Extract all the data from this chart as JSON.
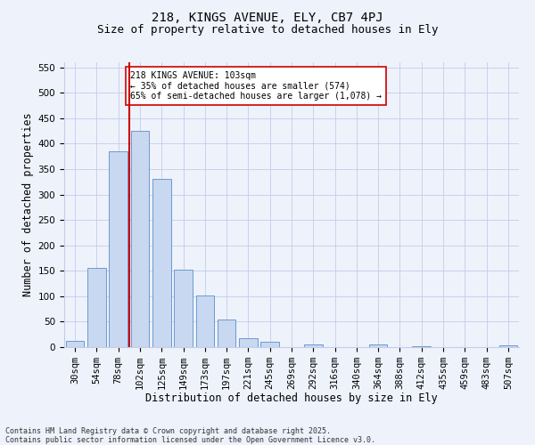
{
  "title1": "218, KINGS AVENUE, ELY, CB7 4PJ",
  "title2": "Size of property relative to detached houses in Ely",
  "xlabel": "Distribution of detached houses by size in Ely",
  "ylabel": "Number of detached properties",
  "categories": [
    "30sqm",
    "54sqm",
    "78sqm",
    "102sqm",
    "125sqm",
    "149sqm",
    "173sqm",
    "197sqm",
    "221sqm",
    "245sqm",
    "269sqm",
    "292sqm",
    "316sqm",
    "340sqm",
    "364sqm",
    "388sqm",
    "412sqm",
    "435sqm",
    "459sqm",
    "483sqm",
    "507sqm"
  ],
  "values": [
    12,
    155,
    385,
    425,
    330,
    152,
    102,
    55,
    18,
    10,
    0,
    5,
    0,
    0,
    5,
    0,
    2,
    0,
    0,
    0,
    3
  ],
  "bar_color": "#c8d8f0",
  "bar_edge_color": "#5b8fc9",
  "vline_color": "#cc0000",
  "vline_x": 2.5,
  "annotation_text": "218 KINGS AVENUE: 103sqm\n← 35% of detached houses are smaller (574)\n65% of semi-detached houses are larger (1,078) →",
  "annotation_box_color": "#ffffff",
  "annotation_box_edge": "#cc0000",
  "ylim": [
    0,
    560
  ],
  "yticks": [
    0,
    50,
    100,
    150,
    200,
    250,
    300,
    350,
    400,
    450,
    500,
    550
  ],
  "bg_color": "#eef2fb",
  "grid_color": "#c5cce8",
  "footer_line1": "Contains HM Land Registry data © Crown copyright and database right 2025.",
  "footer_line2": "Contains public sector information licensed under the Open Government Licence v3.0.",
  "title1_fontsize": 10,
  "title2_fontsize": 9,
  "xlabel_fontsize": 8.5,
  "ylabel_fontsize": 8.5,
  "tick_fontsize": 7.5,
  "annot_fontsize": 7,
  "footer_fontsize": 6
}
